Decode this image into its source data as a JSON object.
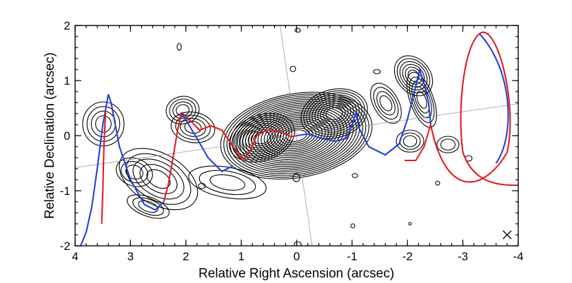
{
  "chart_data": {
    "type": "contour",
    "xlabel": "Relative Right Ascension (arcsec)",
    "ylabel": "Relative Declination (arcsec)",
    "xlim": [
      4,
      -4
    ],
    "ylim": [
      -2,
      2
    ],
    "xticks": [
      "4",
      "3",
      "2",
      "1",
      "0",
      "-1",
      "-2",
      "-3",
      "-4"
    ],
    "yticks": [
      "-2",
      "-1",
      "0",
      "1",
      "2"
    ],
    "grid": false,
    "colors": {
      "model_red": "#e41a1c",
      "model_blue": "#1f3fdc",
      "contours": "#000000",
      "reference_lines": "#999999"
    },
    "reference_lines": [
      {
        "points": [
          [
            4,
            -0.58
          ],
          [
            -4,
            0.58
          ]
        ]
      },
      {
        "points": [
          [
            0.3,
            2.0
          ],
          [
            -0.28,
            -2.0
          ]
        ]
      }
    ],
    "beam_marker": {
      "x": -3.8,
      "y": -1.8
    },
    "model_helix_blue": [
      [
        0,
        0
      ],
      [
        -0.2,
        0.03
      ],
      [
        -0.45,
        -0.05
      ],
      [
        -0.7,
        -0.1
      ],
      [
        -0.9,
        -0.05
      ],
      [
        -1.0,
        0.2
      ],
      [
        -1.08,
        0.45
      ],
      [
        -1.12,
        0.15
      ],
      [
        -1.3,
        -0.2
      ],
      [
        -1.6,
        -0.35
      ],
      [
        -1.85,
        -0.15
      ],
      [
        -2.0,
        0.3
      ],
      [
        -2.15,
        0.9
      ],
      [
        -2.22,
        1.2
      ],
      [
        -2.3,
        0.95
      ],
      [
        -2.38,
        0.6
      ],
      [
        -2.42,
        0.2
      ]
    ],
    "model_helix_red": [
      [
        0,
        0
      ],
      [
        0.1,
        -0.02
      ],
      [
        0.3,
        0.08
      ],
      [
        0.55,
        0.1
      ],
      [
        0.72,
        0.0
      ],
      [
        0.85,
        -0.3
      ],
      [
        0.98,
        -0.45
      ],
      [
        1.15,
        -0.2
      ],
      [
        1.35,
        0.1
      ],
      [
        1.55,
        0.18
      ],
      [
        1.75,
        0.1
      ],
      [
        1.95,
        0.3
      ],
      [
        2.08,
        0.42
      ]
    ]
  }
}
